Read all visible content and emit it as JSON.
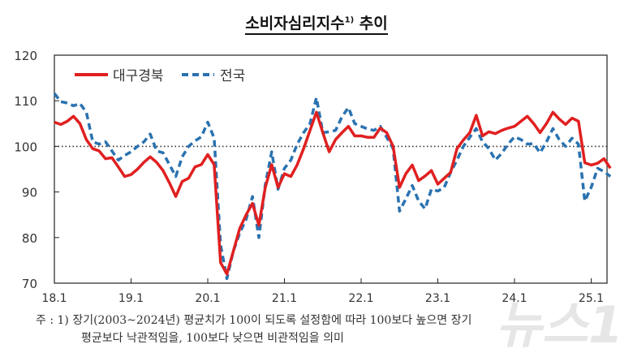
{
  "title": "소비자심리지수",
  "title_sup": "1)",
  "title_suffix": " 추이",
  "watermark": "뉴스1",
  "footnote": {
    "line1": "주 : 1) 장기(2003~2024년) 평균치가 100이 되도록 설정함에 따라 100보다 높으면 장기",
    "line2": "평균보다 낙관적임을, 100보다 낮으면 비관적임을 의미"
  },
  "chart_data": {
    "type": "line",
    "title": "소비자심리지수1) 추이",
    "xlabel": "",
    "ylabel": "",
    "ylim": [
      70,
      120
    ],
    "yticks": [
      70,
      80,
      90,
      100,
      110,
      120
    ],
    "xtick_labels": [
      "18.1",
      "19.1",
      "20.1",
      "21.1",
      "22.1",
      "23.1",
      "24.1",
      "25.1"
    ],
    "x_start": "2018.1",
    "x_end": "2025.4",
    "frequency": "monthly",
    "reference_line": 100,
    "grid": false,
    "legend_position": "top-left",
    "series": [
      {
        "name": "대구경북",
        "color": "#e02020",
        "style": "solid",
        "values": [
          105.3,
          104.8,
          105.5,
          106.6,
          105,
          101.5,
          99.5,
          99,
          97.3,
          97.5,
          95.5,
          93.4,
          93.8,
          95,
          96.5,
          97.7,
          96.5,
          94.7,
          92,
          89,
          92.3,
          93,
          95.5,
          96,
          98.2,
          96,
          74.5,
          72,
          77,
          82,
          85,
          87.5,
          82.7,
          91,
          96,
          91,
          94,
          93.4,
          96,
          99.5,
          103.5,
          107.5,
          103,
          98.8,
          101.5,
          103,
          104.4,
          102.3,
          102.3,
          102,
          102,
          104,
          103,
          100,
          91,
          94,
          95.9,
          92.5,
          93.5,
          94.7,
          91.7,
          93,
          94.3,
          99.5,
          101.4,
          103,
          106.8,
          102.3,
          103.2,
          102.8,
          103.5,
          104,
          104.4,
          105.5,
          106.6,
          105,
          103,
          105,
          107.5,
          106,
          104.8,
          106.2,
          105.5,
          96.4,
          95.9,
          96.3,
          97.3,
          95.2
        ]
      },
      {
        "name": "전국",
        "color": "#2a72b0",
        "style": "dashed",
        "values": [
          111.6,
          109.8,
          109.5,
          108.9,
          109.4,
          107.5,
          101,
          100.5,
          101,
          99,
          97,
          98,
          98.8,
          100,
          101,
          102.7,
          99,
          98.6,
          96,
          93.4,
          97.7,
          100,
          101.2,
          102.1,
          105.3,
          101.8,
          78.4,
          71,
          77,
          81,
          84,
          89,
          80,
          91.6,
          98.8,
          90.6,
          95.2,
          97,
          100.5,
          103,
          105,
          110.7,
          103,
          103.2,
          103.5,
          106.5,
          108.5,
          105,
          104.4,
          103.8,
          103.5,
          104.4,
          102,
          99.5,
          85.8,
          88.5,
          91.4,
          88,
          86.3,
          90.6,
          90.2,
          91,
          94.3,
          97,
          100,
          102,
          103.9,
          101,
          99.5,
          97,
          98.5,
          100.5,
          102.1,
          101.5,
          100.5,
          100.6,
          98.6,
          101,
          103.9,
          101.5,
          100,
          101.8,
          100.5,
          88,
          91,
          95.2,
          94.5,
          93.4
        ]
      }
    ]
  }
}
